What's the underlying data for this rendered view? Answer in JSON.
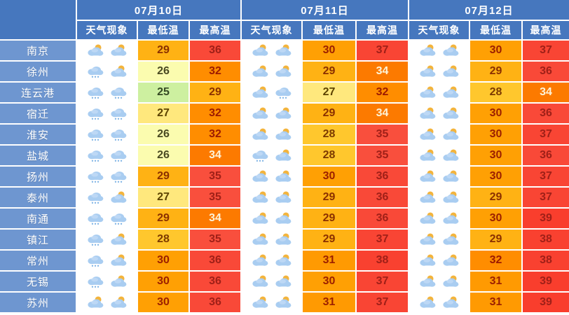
{
  "colors": {
    "header_bg": "#4677be",
    "city_bg": "#6e96d0",
    "table_gap": "#ffffff"
  },
  "icon_names": {
    "partly": "partly-cloudy-icon",
    "rain": "rain-icon"
  },
  "temp_colors": {
    "25": {
      "bg": "#cdf0a0",
      "fg": "#354a23"
    },
    "26": {
      "bg": "#fbfcaf",
      "fg": "#4a4a22"
    },
    "27": {
      "bg": "#ffe87d",
      "fg": "#5c4300"
    },
    "28": {
      "bg": "#ffc72d",
      "fg": "#7c3a00"
    },
    "29": {
      "bg": "#ffb214",
      "fg": "#8a3000"
    },
    "30": {
      "bg": "#ffa004",
      "fg": "#9c2000"
    },
    "31": {
      "bg": "#ff9a02",
      "fg": "#9c2000"
    },
    "32": {
      "bg": "#ff8d00",
      "fg": "#9c1a00"
    },
    "34": {
      "bg": "#fc7a00",
      "fg": "#fdf3d8"
    },
    "35": {
      "bg": "#f94f3d",
      "fg": "#a02018"
    },
    "36": {
      "bg": "#f94938",
      "fg": "#a02018"
    },
    "37": {
      "bg": "#f94534",
      "fg": "#a02018"
    },
    "38": {
      "bg": "#f94130",
      "fg": "#a02018"
    },
    "39": {
      "bg": "#f93e2d",
      "fg": "#a02018"
    }
  },
  "table": {
    "days": [
      {
        "date": "07月10日"
      },
      {
        "date": "07月11日"
      },
      {
        "date": "07月12日"
      }
    ],
    "sub_headers": {
      "weather": "天气现象",
      "min": "最低温",
      "max": "最高温"
    },
    "rows": [
      {
        "city": "南京",
        "days": [
          {
            "icons": [
              "partly",
              "partly"
            ],
            "min": 29,
            "max": 36
          },
          {
            "icons": [
              "partly",
              "partly"
            ],
            "min": 30,
            "max": 37
          },
          {
            "icons": [
              "partly",
              "partly"
            ],
            "min": 30,
            "max": 37
          }
        ]
      },
      {
        "city": "徐州",
        "days": [
          {
            "icons": [
              "rain",
              "partly"
            ],
            "min": 26,
            "max": 32
          },
          {
            "icons": [
              "partly",
              "partly"
            ],
            "min": 29,
            "max": 34
          },
          {
            "icons": [
              "partly",
              "partly"
            ],
            "min": 29,
            "max": 36
          }
        ]
      },
      {
        "city": "连云港",
        "days": [
          {
            "icons": [
              "rain",
              "rain"
            ],
            "min": 25,
            "max": 29
          },
          {
            "icons": [
              "partly",
              "rain"
            ],
            "min": 27,
            "max": 32
          },
          {
            "icons": [
              "partly",
              "partly"
            ],
            "min": 28,
            "max": 34
          }
        ]
      },
      {
        "city": "宿迁",
        "days": [
          {
            "icons": [
              "rain",
              "rain"
            ],
            "min": 27,
            "max": 32
          },
          {
            "icons": [
              "partly",
              "partly"
            ],
            "min": 29,
            "max": 34
          },
          {
            "icons": [
              "partly",
              "partly"
            ],
            "min": 30,
            "max": 36
          }
        ]
      },
      {
        "city": "淮安",
        "days": [
          {
            "icons": [
              "rain",
              "rain"
            ],
            "min": 26,
            "max": 32
          },
          {
            "icons": [
              "partly",
              "partly"
            ],
            "min": 28,
            "max": 35
          },
          {
            "icons": [
              "partly",
              "partly"
            ],
            "min": 30,
            "max": 37
          }
        ]
      },
      {
        "city": "盐城",
        "days": [
          {
            "icons": [
              "rain",
              "rain"
            ],
            "min": 26,
            "max": 34
          },
          {
            "icons": [
              "rain",
              "partly"
            ],
            "min": 28,
            "max": 35
          },
          {
            "icons": [
              "partly",
              "partly"
            ],
            "min": 30,
            "max": 36
          }
        ]
      },
      {
        "city": "扬州",
        "days": [
          {
            "icons": [
              "rain",
              "rain"
            ],
            "min": 29,
            "max": 35
          },
          {
            "icons": [
              "partly",
              "partly"
            ],
            "min": 30,
            "max": 36
          },
          {
            "icons": [
              "partly",
              "partly"
            ],
            "min": 30,
            "max": 37
          }
        ]
      },
      {
        "city": "泰州",
        "days": [
          {
            "icons": [
              "rain",
              "partly"
            ],
            "min": 27,
            "max": 35
          },
          {
            "icons": [
              "partly",
              "partly"
            ],
            "min": 29,
            "max": 36
          },
          {
            "icons": [
              "partly",
              "partly"
            ],
            "min": 29,
            "max": 37
          }
        ]
      },
      {
        "city": "南通",
        "days": [
          {
            "icons": [
              "rain",
              "rain"
            ],
            "min": 29,
            "max": 34
          },
          {
            "icons": [
              "partly",
              "partly"
            ],
            "min": 29,
            "max": 36
          },
          {
            "icons": [
              "partly",
              "partly"
            ],
            "min": 30,
            "max": 39
          }
        ]
      },
      {
        "city": "镇江",
        "days": [
          {
            "icons": [
              "rain",
              "partly"
            ],
            "min": 28,
            "max": 35
          },
          {
            "icons": [
              "partly",
              "partly"
            ],
            "min": 29,
            "max": 37
          },
          {
            "icons": [
              "partly",
              "partly"
            ],
            "min": 29,
            "max": 38
          }
        ]
      },
      {
        "city": "常州",
        "days": [
          {
            "icons": [
              "rain",
              "partly"
            ],
            "min": 30,
            "max": 36
          },
          {
            "icons": [
              "partly",
              "partly"
            ],
            "min": 31,
            "max": 38
          },
          {
            "icons": [
              "partly",
              "partly"
            ],
            "min": 32,
            "max": 38
          }
        ]
      },
      {
        "city": "无锡",
        "days": [
          {
            "icons": [
              "rain",
              "partly"
            ],
            "min": 30,
            "max": 36
          },
          {
            "icons": [
              "partly",
              "partly"
            ],
            "min": 30,
            "max": 37
          },
          {
            "icons": [
              "partly",
              "partly"
            ],
            "min": 31,
            "max": 39
          }
        ]
      },
      {
        "city": "苏州",
        "days": [
          {
            "icons": [
              "partly",
              "partly"
            ],
            "min": 30,
            "max": 36
          },
          {
            "icons": [
              "partly",
              "partly"
            ],
            "min": 31,
            "max": 37
          },
          {
            "icons": [
              "partly",
              "partly"
            ],
            "min": 31,
            "max": 39
          }
        ]
      }
    ]
  }
}
